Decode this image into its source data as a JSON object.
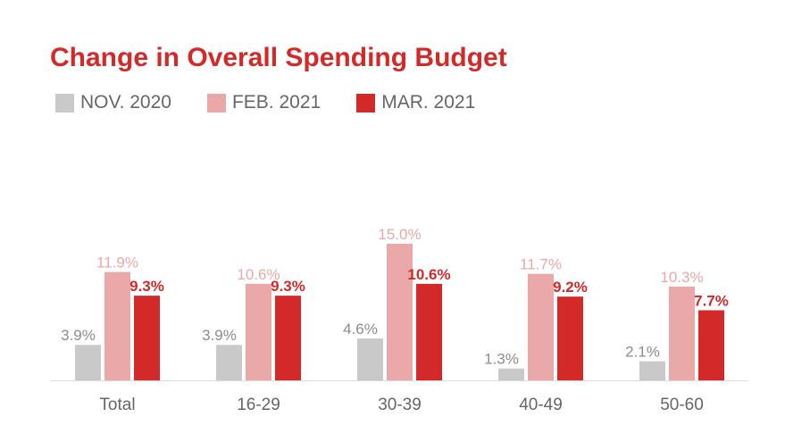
{
  "chart_data": {
    "type": "bar",
    "title": "Change in Overall Spending Budget",
    "categories": [
      "Total",
      "16-29",
      "30-39",
      "40-49",
      "50-60"
    ],
    "series": [
      {
        "name": "NOV. 2020",
        "values": [
          3.9,
          3.9,
          4.6,
          1.3,
          2.1
        ],
        "labels": [
          "3.9%",
          "3.9%",
          "4.6%",
          "1.3%",
          "2.1%"
        ]
      },
      {
        "name": "FEB. 2021",
        "values": [
          11.9,
          10.6,
          15.0,
          11.7,
          10.3
        ],
        "labels": [
          "11.9%",
          "10.6%",
          "15.0%",
          "11.7%",
          "10.3%"
        ]
      },
      {
        "name": "MAR. 2021",
        "values": [
          9.3,
          9.3,
          10.6,
          9.2,
          7.7
        ],
        "labels": [
          "9.3%",
          "9.3%",
          "10.6%",
          "9.2%",
          "7.7%"
        ]
      }
    ],
    "colors": {
      "series": [
        "#c9c9c9",
        "#eaa8a8",
        "#d32a29"
      ],
      "label_text": [
        "#8c8c8c",
        "#eaa8a8",
        "#d32a29"
      ],
      "title": "#d32a29",
      "axis_text": "#666666",
      "baseline": "#dddddd"
    },
    "legend_position": "top-left",
    "grid": false,
    "ylim": [
      0,
      17
    ]
  }
}
